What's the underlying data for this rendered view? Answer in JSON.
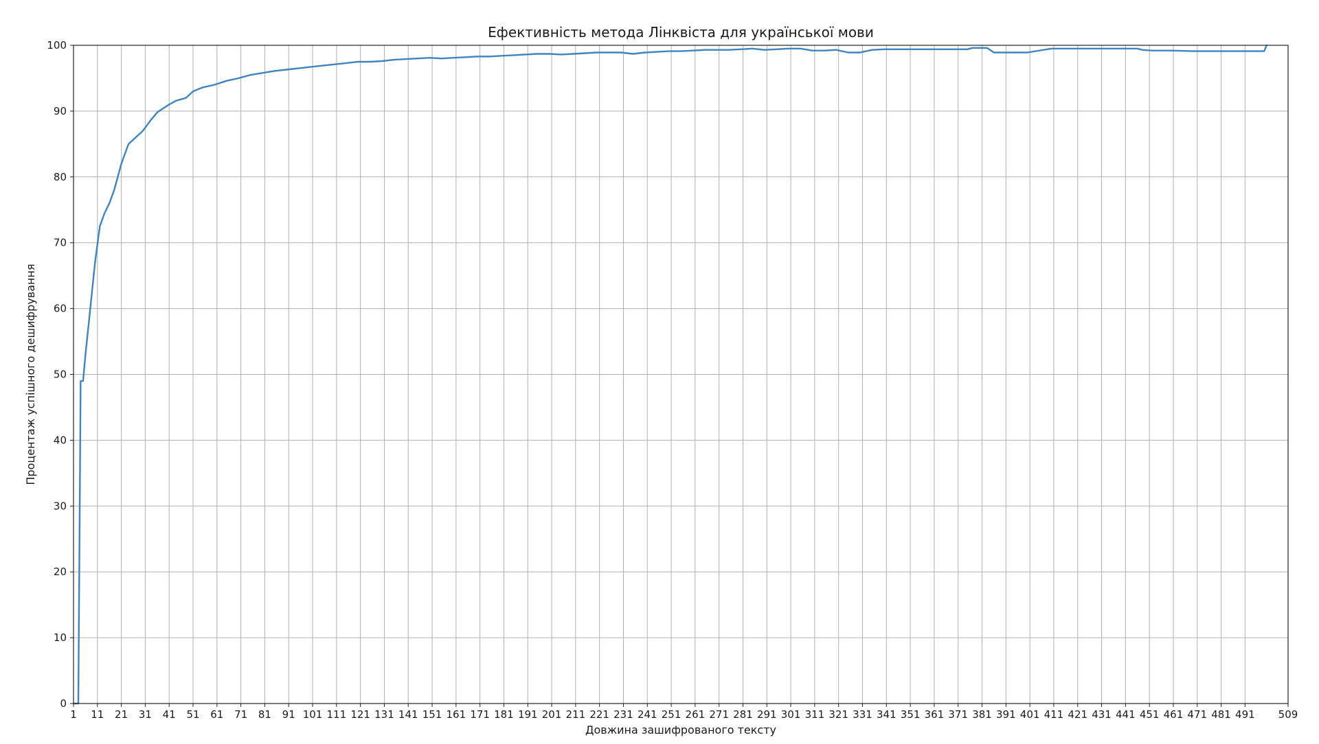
{
  "chart_data": {
    "type": "line",
    "title": "Ефективність метода Лінквіста для української мови",
    "xlabel": "Довжина зашифрованого тексту",
    "ylabel": "Процентаж успішного дешифрування",
    "xlim": [
      1,
      509
    ],
    "ylim": [
      0,
      100
    ],
    "x_ticks": [
      1,
      11,
      21,
      31,
      41,
      51,
      61,
      71,
      81,
      91,
      101,
      111,
      121,
      131,
      141,
      151,
      161,
      171,
      181,
      191,
      201,
      211,
      221,
      231,
      241,
      251,
      261,
      271,
      281,
      291,
      301,
      311,
      321,
      331,
      341,
      351,
      361,
      371,
      381,
      391,
      401,
      411,
      421,
      431,
      441,
      451,
      461,
      471,
      481,
      491,
      509
    ],
    "x_tick_labels": [
      "1",
      "11",
      "21",
      "31",
      "41",
      "51",
      "61",
      "71",
      "81",
      "91",
      "101",
      "111",
      "121",
      "131",
      "141",
      "151",
      "161",
      "171",
      "181",
      "191",
      "201",
      "211",
      "221",
      "231",
      "241",
      "251",
      "261",
      "271",
      "281",
      "291",
      "301",
      "311",
      "321",
      "331",
      "341",
      "351",
      "361",
      "371",
      "381",
      "391",
      "401",
      "411",
      "421",
      "431",
      "441",
      "451",
      "461",
      "471",
      "481",
      "491",
      "509"
    ],
    "y_ticks": [
      0,
      10,
      20,
      30,
      40,
      50,
      60,
      70,
      80,
      90,
      100
    ],
    "y_tick_labels": [
      "0",
      "10",
      "20",
      "30",
      "40",
      "50",
      "60",
      "70",
      "80",
      "90",
      "100"
    ],
    "grid": true,
    "series": [
      {
        "color": "#3f84c1",
        "x": [
          1,
          3,
          4,
          5,
          6,
          8,
          10,
          12,
          14,
          16,
          18,
          21,
          24,
          27,
          30,
          33,
          36,
          38,
          41,
          44,
          48,
          51,
          55,
          60,
          65,
          70,
          75,
          80,
          85,
          90,
          95,
          100,
          105,
          110,
          115,
          120,
          125,
          130,
          135,
          140,
          145,
          150,
          155,
          160,
          165,
          170,
          175,
          180,
          185,
          190,
          195,
          200,
          205,
          210,
          215,
          220,
          225,
          230,
          235,
          240,
          245,
          250,
          255,
          260,
          265,
          270,
          275,
          280,
          285,
          290,
          295,
          300,
          305,
          310,
          315,
          320,
          325,
          330,
          335,
          340,
          345,
          350,
          355,
          360,
          365,
          370,
          373,
          375,
          377,
          380,
          383,
          386,
          390,
          400,
          410,
          416,
          418,
          425,
          432,
          434,
          440,
          446,
          448,
          452,
          460,
          470,
          480,
          490,
          499,
          500
        ],
        "y": [
          0,
          0,
          49,
          49,
          53,
          60,
          67,
          72.5,
          74.5,
          76,
          78,
          82,
          85,
          86,
          87,
          88.5,
          89.8,
          90.3,
          91,
          91.6,
          92,
          93,
          93.6,
          94,
          94.6,
          95,
          95.5,
          95.8,
          96.1,
          96.3,
          96.5,
          96.7,
          96.9,
          97.1,
          97.3,
          97.5,
          97.5,
          97.6,
          97.8,
          97.9,
          98,
          98.1,
          98,
          98.1,
          98.2,
          98.3,
          98.3,
          98.4,
          98.5,
          98.6,
          98.7,
          98.7,
          98.6,
          98.7,
          98.8,
          98.9,
          98.9,
          98.9,
          98.7,
          98.9,
          99,
          99.1,
          99.1,
          99.2,
          99.3,
          99.3,
          99.3,
          99.4,
          99.5,
          99.3,
          99.4,
          99.5,
          99.5,
          99.2,
          99.2,
          99.3,
          98.9,
          98.9,
          99.3,
          99.4,
          99.4,
          99.4,
          99.4,
          99.4,
          99.4,
          99.4,
          99.4,
          99.4,
          99.6,
          99.6,
          99.6,
          98.9,
          98.9,
          98.9,
          99.5,
          99.5,
          99.5,
          99.5,
          99.5,
          99.5,
          99.5,
          99.5,
          99.3,
          99.2,
          99.2,
          99.1,
          99.1,
          99.1,
          99.1,
          100
        ]
      }
    ]
  }
}
